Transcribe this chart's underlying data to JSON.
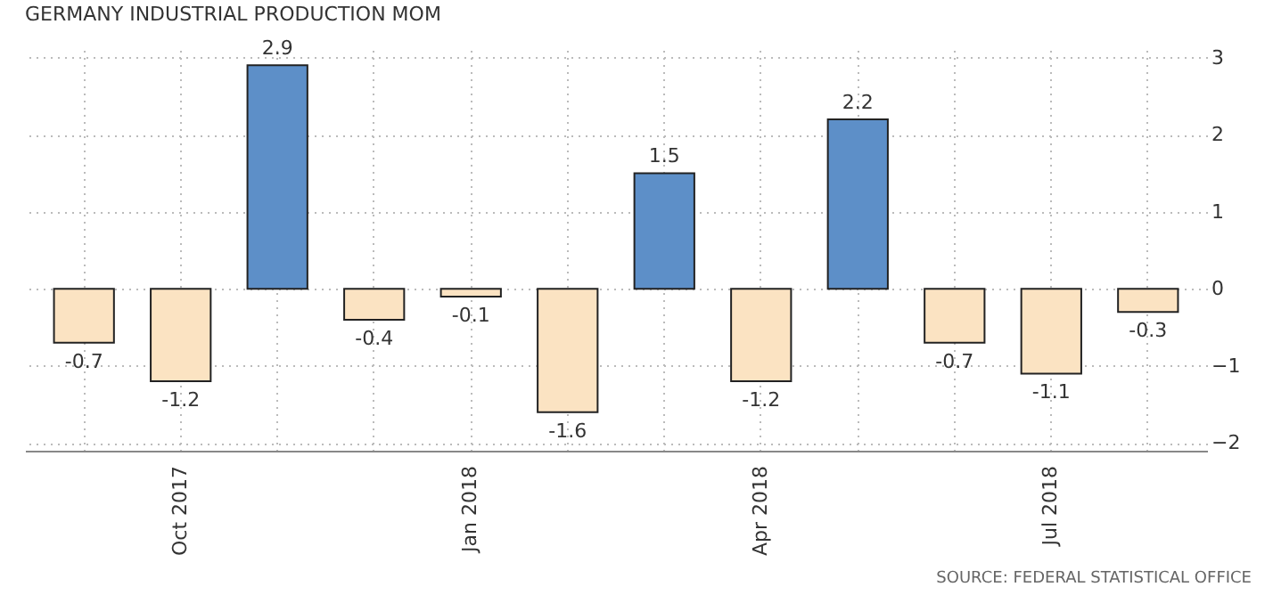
{
  "chart_data": {
    "type": "bar",
    "title": "GERMANY INDUSTRIAL PRODUCTION MOM",
    "categories": [
      null,
      "Oct 2017",
      null,
      null,
      "Jan 2018",
      null,
      null,
      "Apr 2018",
      null,
      null,
      "Jul 2018",
      null
    ],
    "values": [
      -0.7,
      -1.2,
      2.9,
      -0.4,
      -0.1,
      -1.6,
      1.5,
      -1.2,
      2.2,
      -0.7,
      -1.1,
      -0.3
    ],
    "colors": [
      "#fbe3c2",
      "#fbe3c2",
      "#5d8fc8",
      "#fbe3c2",
      "#fbe3c2",
      "#fbe3c2",
      "#5d8fc8",
      "#fbe3c2",
      "#5d8fc8",
      "#fbe3c2",
      "#fbe3c2",
      "#fbe3c2"
    ],
    "ylim": [
      -2.1,
      3.1
    ],
    "yticks": [
      -2,
      -1,
      0,
      1,
      2,
      3
    ],
    "grid": true,
    "data_labels": true,
    "annotations": [
      "SOURCE: FEDERAL STATISTICAL OFFICE"
    ]
  }
}
